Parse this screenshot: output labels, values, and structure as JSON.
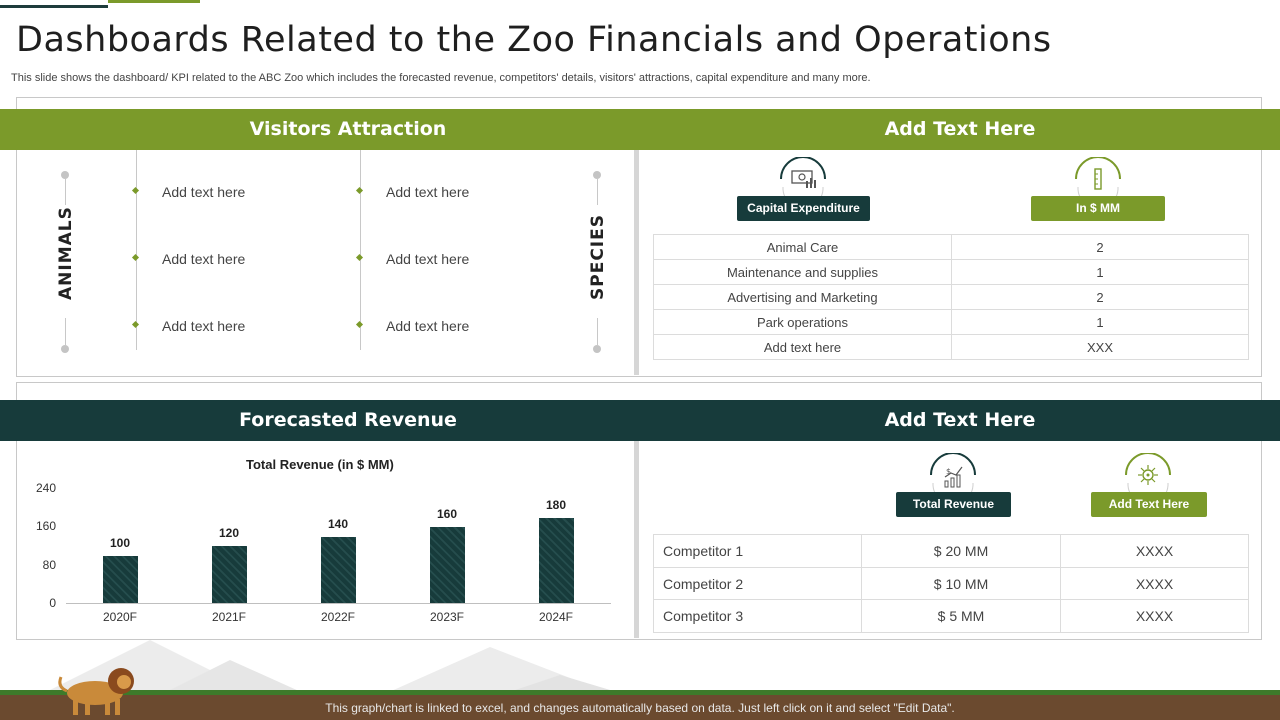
{
  "title": "Dashboards Related to the Zoo Financials and Operations",
  "subtitle": "This slide shows the dashboard/ KPI related to the ABC Zoo which includes the forecasted revenue, competitors' details, visitors' attractions, capital expenditure and many more.",
  "visitors": {
    "heading": "Visitors Attraction",
    "left_label": "ANIMALS",
    "right_label": "SPECIES",
    "items_col1": [
      "Add text here",
      "Add text here",
      "Add text here"
    ],
    "items_col2": [
      "Add text here",
      "Add text here",
      "Add text here"
    ]
  },
  "capex": {
    "heading": "Add Text Here",
    "pill_left": "Capital Expenditure",
    "pill_right": "In $ MM",
    "rows": [
      {
        "label": "Animal Care",
        "value": "2"
      },
      {
        "label": "Maintenance and supplies",
        "value": "1"
      },
      {
        "label": "Advertising and Marketing",
        "value": "2"
      },
      {
        "label": "Park operations",
        "value": "1"
      },
      {
        "label": "Add text here",
        "value": "XXX"
      }
    ]
  },
  "revenue": {
    "heading": "Forecasted Revenue"
  },
  "chart_data": {
    "type": "bar",
    "title": "Total Revenue (in $ MM)",
    "categories": [
      "2020F",
      "2021F",
      "2022F",
      "2023F",
      "2024F"
    ],
    "values": [
      100,
      120,
      140,
      160,
      180
    ],
    "yticks": [
      "240",
      "160",
      "80",
      "0"
    ],
    "ylim": [
      0,
      240
    ],
    "xlabel": "",
    "ylabel": "",
    "grid": false,
    "bar_color": "#173b3b"
  },
  "competitors": {
    "heading": "Add Text Here",
    "pill_left": "Total Revenue",
    "pill_right": "Add Text Here",
    "rows": [
      {
        "name": "Competitor 1",
        "revenue": "$ 20 MM",
        "other": "XXXX"
      },
      {
        "name": "Competitor 2",
        "revenue": "$ 10 MM",
        "other": "XXXX"
      },
      {
        "name": "Competitor 3",
        "revenue": "$ 5 MM",
        "other": "XXXX"
      }
    ]
  },
  "footer": {
    "note": "This graph/chart is linked to excel, and changes automatically based on data. Just left click on it and select \"Edit Data\"."
  },
  "colors": {
    "accent_green": "#7b9a2a",
    "dark_teal": "#173b3b"
  }
}
